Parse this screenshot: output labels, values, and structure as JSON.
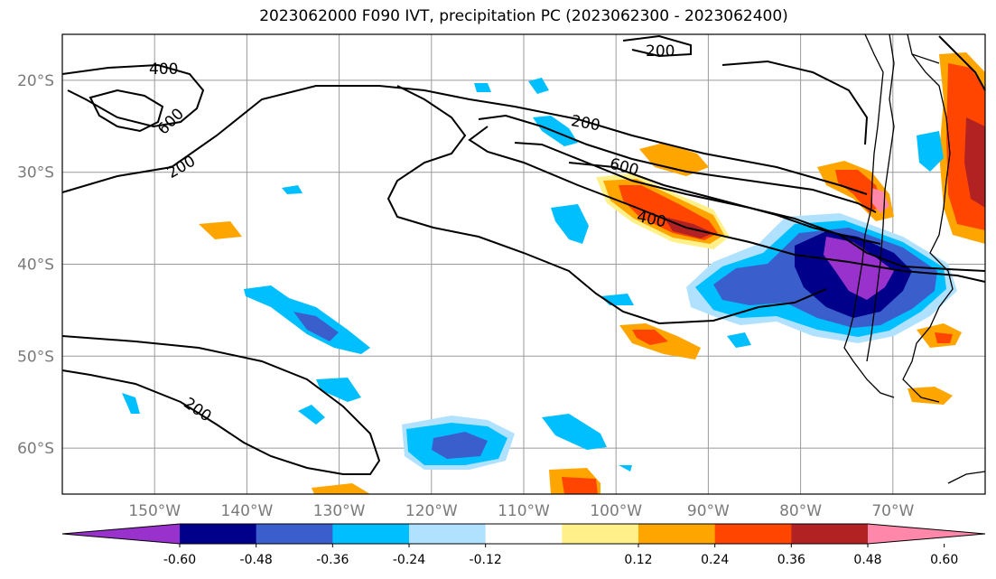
{
  "title": "2023062000 F090 IVT, precipitation PC (2023062300 - 2023062400)",
  "map": {
    "lat_ticks": [
      "20°S",
      "30°S",
      "40°S",
      "50°S",
      "60°S"
    ],
    "lon_ticks": [
      "150°W",
      "140°W",
      "130°W",
      "120°W",
      "110°W",
      "100°W",
      "90°W",
      "80°W",
      "70°W"
    ],
    "contour_labels": [
      "200",
      "400",
      "600"
    ],
    "domain": {
      "lon_min": -160,
      "lon_max": -60,
      "lat_min": -65,
      "lat_max": -15
    }
  },
  "colorbar": {
    "levels": [
      "-0.60",
      "-0.48",
      "-0.36",
      "-0.24",
      "-0.12",
      "0.12",
      "0.24",
      "0.36",
      "0.48",
      "0.60"
    ],
    "colors": [
      "#9932cc",
      "#00008b",
      "#3a5fcd",
      "#00bfff",
      "#b0e2ff",
      "#ffffff",
      "#fff08a",
      "#ffa500",
      "#ff4500",
      "#b22222",
      "#ff88aa"
    ]
  }
}
